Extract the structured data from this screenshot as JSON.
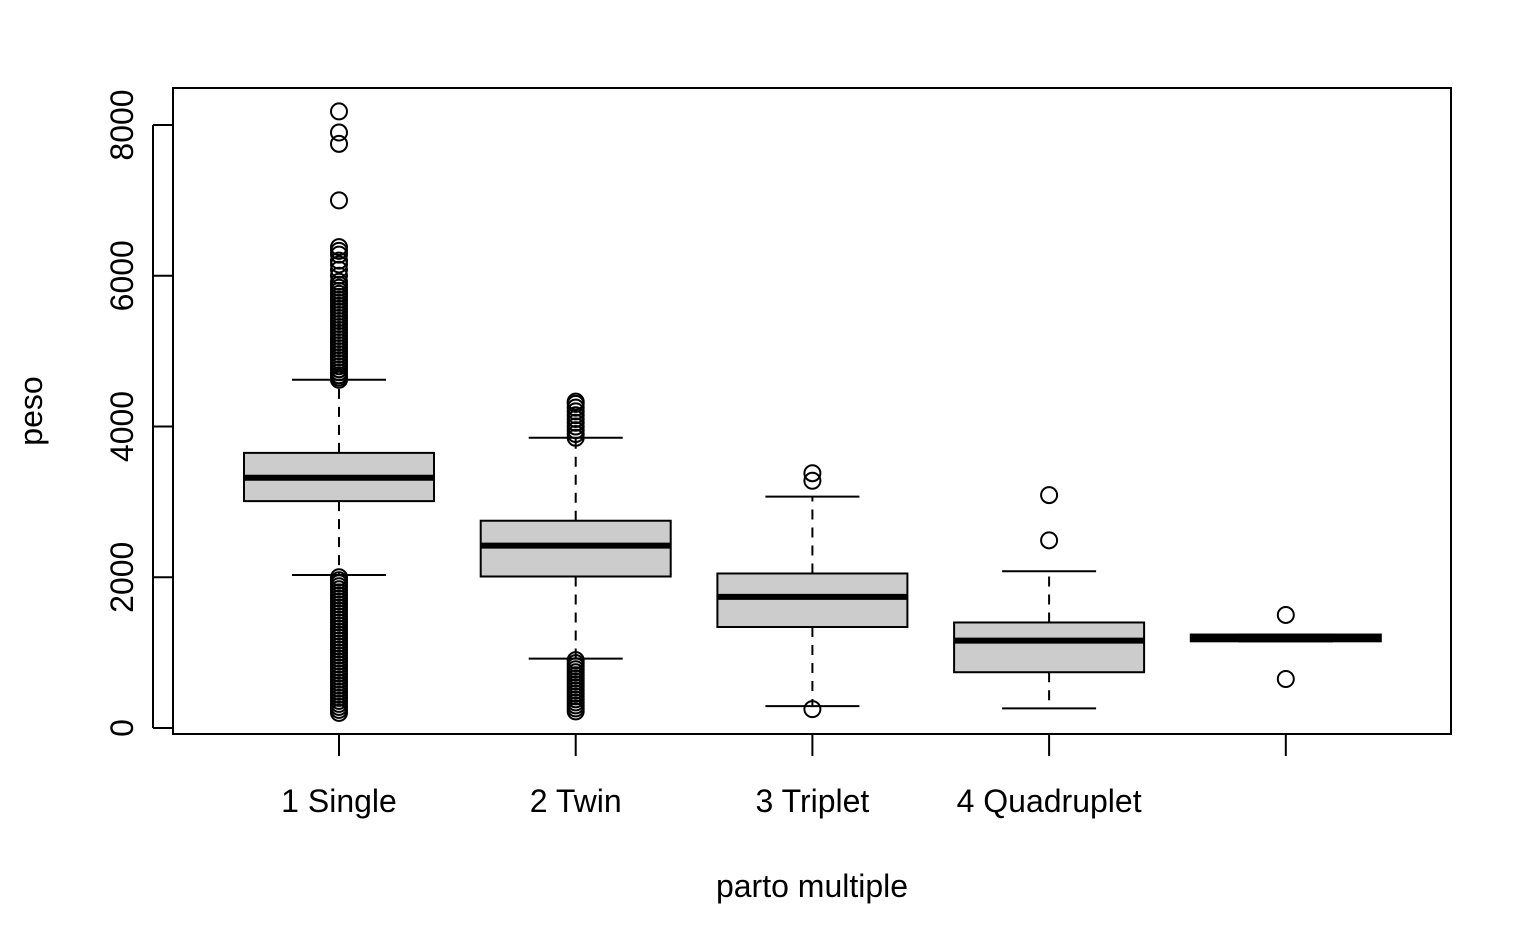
{
  "chart_data": {
    "type": "boxplot",
    "xlabel": "parto multiple",
    "ylabel": "peso",
    "ylim": [
      -100,
      8500
    ],
    "yticks": [
      0,
      2000,
      4000,
      6000,
      8000
    ],
    "categories": [
      "1 Single",
      "2 Twin",
      "3 Triplet",
      "4 Quadruplet",
      ""
    ],
    "boxes": [
      {
        "category": "1 Single",
        "whisker_low": 2030,
        "q1": 3010,
        "median": 3320,
        "q3": 3650,
        "whisker_high": 4620,
        "outliers_high": [
          4620,
          4650,
          4680,
          4720,
          4760,
          4800,
          4840,
          4880,
          4920,
          4960,
          5000,
          5040,
          5080,
          5120,
          5160,
          5200,
          5240,
          5280,
          5320,
          5360,
          5400,
          5440,
          5480,
          5520,
          5560,
          5600,
          5640,
          5680,
          5720,
          5760,
          5800,
          5840,
          5880,
          5920,
          6000,
          6080,
          6150,
          6200,
          6280,
          6330,
          6380,
          7000,
          7750,
          7900,
          8180
        ],
        "outliers_low": [
          200,
          240,
          280,
          320,
          360,
          400,
          440,
          480,
          520,
          560,
          600,
          640,
          680,
          720,
          760,
          800,
          840,
          880,
          920,
          960,
          1000,
          1040,
          1080,
          1120,
          1160,
          1200,
          1240,
          1280,
          1320,
          1360,
          1400,
          1440,
          1480,
          1520,
          1560,
          1600,
          1640,
          1680,
          1720,
          1760,
          1800,
          1840,
          1880,
          1920,
          1960,
          2000
        ]
      },
      {
        "category": "2 Twin",
        "whisker_low": 920,
        "q1": 2010,
        "median": 2420,
        "q3": 2750,
        "whisker_high": 3850,
        "outliers_high": [
          3850,
          3900,
          3950,
          4000,
          4050,
          4100,
          4150,
          4200,
          4250,
          4300,
          4330
        ],
        "outliers_low": [
          220,
          260,
          300,
          340,
          380,
          420,
          460,
          500,
          540,
          580,
          620,
          660,
          700,
          740,
          780,
          820,
          860,
          900
        ]
      },
      {
        "category": "3 Triplet",
        "whisker_low": 290,
        "q1": 1340,
        "median": 1740,
        "q3": 2050,
        "whisker_high": 3070,
        "outliers_high": [
          3280,
          3380
        ],
        "outliers_low": [
          250
        ]
      },
      {
        "category": "4 Quadruplet",
        "whisker_low": 260,
        "q1": 740,
        "median": 1160,
        "q3": 1400,
        "whisker_high": 2080,
        "outliers_high": [
          2490,
          3090
        ],
        "outliers_low": []
      },
      {
        "category": "",
        "whisker_low": 1150,
        "q1": 1150,
        "median": 1190,
        "q3": 1240,
        "whisker_high": 1240,
        "outliers_high": [
          1500
        ],
        "outliers_low": [
          650
        ]
      }
    ],
    "box_fill": "#cccccc",
    "grid": false
  }
}
